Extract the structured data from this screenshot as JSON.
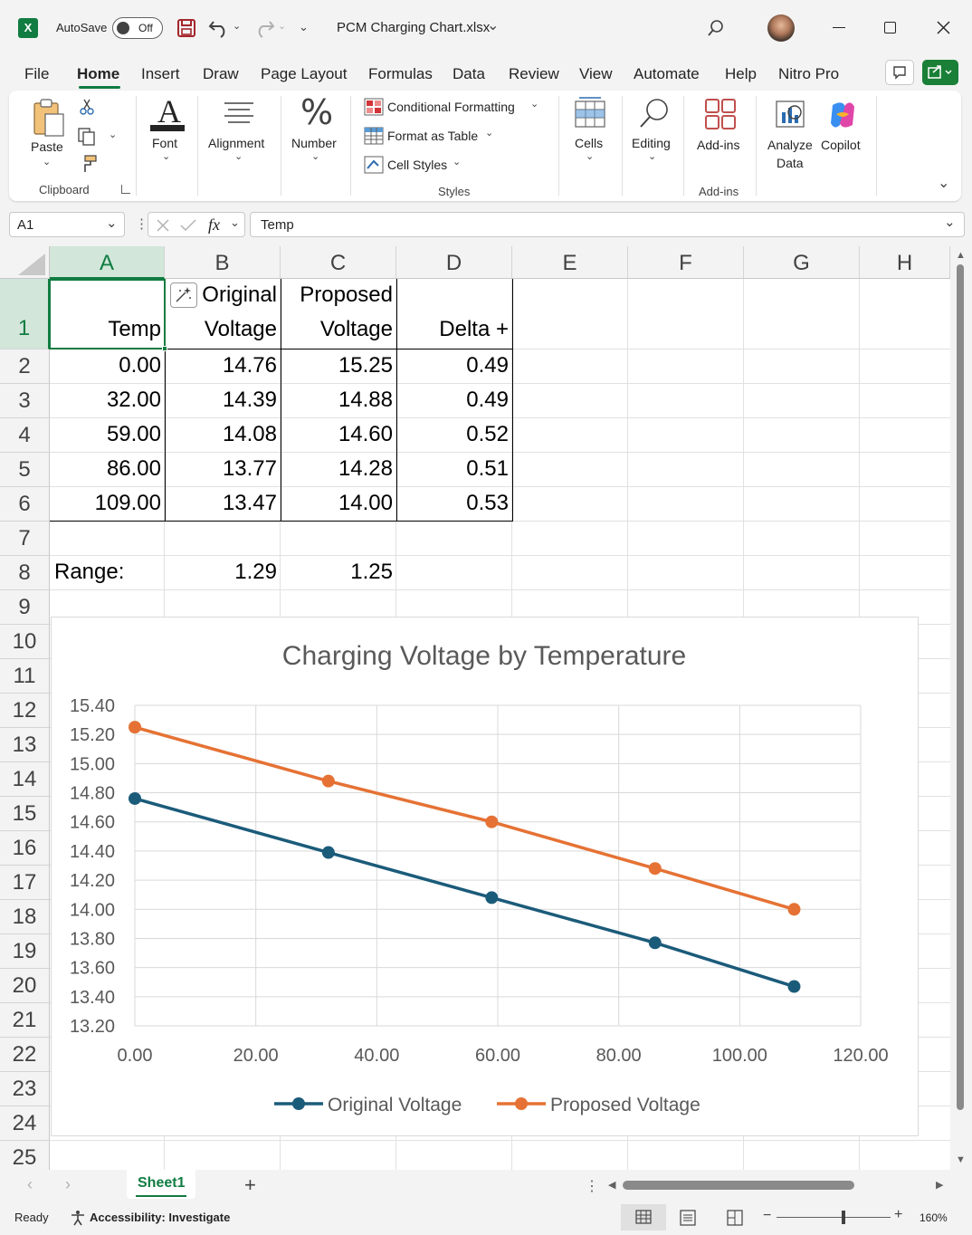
{
  "window": {
    "autosave_label": "AutoSave",
    "autosave_state": "Off",
    "file_title": "PCM Charging Chart.xlsx",
    "excel_glyph": "X"
  },
  "menu_tabs": [
    "File",
    "Home",
    "Insert",
    "Draw",
    "Page Layout",
    "Formulas",
    "Data",
    "Review",
    "View",
    "Automate",
    "Help",
    "Nitro Pro"
  ],
  "active_tab": "Home",
  "ribbon": {
    "paste": "Paste",
    "clipboard": "Clipboard",
    "font": "Font",
    "alignment": "Alignment",
    "number": "Number",
    "conditional_formatting": "Conditional Formatting",
    "format_as_table": "Format as Table",
    "cell_styles": "Cell Styles",
    "styles": "Styles",
    "cells": "Cells",
    "editing": "Editing",
    "addins": "Add-ins",
    "addins_group": "Add-ins",
    "analyze_data_1": "Analyze",
    "analyze_data_2": "Data",
    "copilot": "Copilot"
  },
  "formula_bar": {
    "name_box": "A1",
    "fx": "fx",
    "content": "Temp"
  },
  "columns": [
    "A",
    "B",
    "C",
    "D",
    "E",
    "F",
    "G",
    "H"
  ],
  "rows": [
    "1",
    "2",
    "3",
    "4",
    "5",
    "6",
    "7",
    "8",
    "9",
    "10",
    "11",
    "12",
    "13",
    "14",
    "15",
    "16",
    "17",
    "18",
    "19",
    "20",
    "21",
    "22",
    "23",
    "24",
    "25"
  ],
  "header_cells": {
    "a1": "Temp",
    "b1_line1": "Original",
    "b1_line2": "Voltage",
    "c1_line1": "Proposed",
    "c1_line2": "Voltage",
    "d1": "Delta +"
  },
  "table_rows": [
    {
      "temp": "0.00",
      "orig": "14.76",
      "prop": "15.25",
      "delta": "0.49"
    },
    {
      "temp": "32.00",
      "orig": "14.39",
      "prop": "14.88",
      "delta": "0.49"
    },
    {
      "temp": "59.00",
      "orig": "14.08",
      "prop": "14.60",
      "delta": "0.52"
    },
    {
      "temp": "86.00",
      "orig": "13.77",
      "prop": "14.28",
      "delta": "0.51"
    },
    {
      "temp": "109.00",
      "orig": "13.47",
      "prop": "14.00",
      "delta": "0.53"
    }
  ],
  "range_row": {
    "label": "Range:",
    "orig": "1.29",
    "prop": "1.25"
  },
  "chart_data": {
    "type": "line",
    "title": "Charging Voltage by Temperature",
    "xlabel": "",
    "ylabel": "",
    "xlim": [
      0,
      120
    ],
    "ylim": [
      13.2,
      15.4
    ],
    "x_ticks": [
      "0.00",
      "20.00",
      "40.00",
      "60.00",
      "80.00",
      "100.00",
      "120.00"
    ],
    "y_ticks": [
      "13.20",
      "13.40",
      "13.60",
      "13.80",
      "14.00",
      "14.20",
      "14.40",
      "14.60",
      "14.80",
      "15.00",
      "15.20",
      "15.40"
    ],
    "grid": true,
    "legend": "bottom",
    "x": [
      0,
      32,
      59,
      86,
      109
    ],
    "series": [
      {
        "name": "Original Voltage",
        "values": [
          14.76,
          14.39,
          14.08,
          13.77,
          13.47
        ],
        "color": "#1b5b7a"
      },
      {
        "name": "Proposed Voltage",
        "values": [
          15.25,
          14.88,
          14.6,
          14.28,
          14.0
        ],
        "color": "#e57234"
      }
    ]
  },
  "sheet_tab": "Sheet1",
  "status": {
    "ready": "Ready",
    "accessibility": "Accessibility: Investigate",
    "zoom": "160%"
  },
  "colors": {
    "excel_green": "#107c41",
    "share_green": "#1a7f37"
  }
}
